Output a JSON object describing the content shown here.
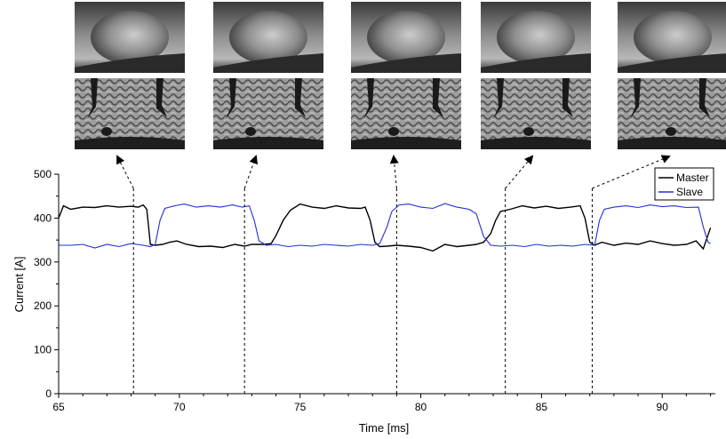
{
  "chart_data": {
    "type": "line",
    "title": "",
    "xlabel": "Time [ms]",
    "ylabel": "Current [A]",
    "xlim": [
      65,
      92.2
    ],
    "ylim": [
      0,
      500
    ],
    "xticks": [
      65,
      70,
      75,
      80,
      85,
      90
    ],
    "yticks": [
      0,
      100,
      200,
      300,
      400,
      500
    ],
    "grid": false,
    "legend_position": "top-right",
    "series": [
      {
        "name": "Master",
        "color": "#000000",
        "points": [
          [
            65.0,
            400
          ],
          [
            65.2,
            428
          ],
          [
            65.5,
            420
          ],
          [
            66.0,
            425
          ],
          [
            66.5,
            424
          ],
          [
            67.0,
            428
          ],
          [
            67.5,
            425
          ],
          [
            68.0,
            427
          ],
          [
            68.3,
            425
          ],
          [
            68.5,
            430
          ],
          [
            68.65,
            420
          ],
          [
            68.8,
            340
          ],
          [
            69.0,
            338
          ],
          [
            69.3,
            340
          ],
          [
            69.6,
            345
          ],
          [
            69.9,
            348
          ],
          [
            70.3,
            340
          ],
          [
            70.8,
            335
          ],
          [
            71.3,
            336
          ],
          [
            71.8,
            333
          ],
          [
            72.3,
            340
          ],
          [
            72.7,
            336
          ],
          [
            73.0,
            340
          ],
          [
            73.5,
            340
          ],
          [
            73.8,
            342
          ],
          [
            74.0,
            360
          ],
          [
            74.3,
            395
          ],
          [
            74.6,
            418
          ],
          [
            75.0,
            432
          ],
          [
            75.5,
            425
          ],
          [
            76.0,
            422
          ],
          [
            76.5,
            428
          ],
          [
            77.0,
            423
          ],
          [
            77.5,
            422
          ],
          [
            77.7,
            425
          ],
          [
            77.9,
            395
          ],
          [
            78.1,
            345
          ],
          [
            78.3,
            335
          ],
          [
            78.6,
            336
          ],
          [
            79.0,
            338
          ],
          [
            79.5,
            336
          ],
          [
            80.0,
            333
          ],
          [
            80.5,
            325
          ],
          [
            81.0,
            340
          ],
          [
            81.5,
            335
          ],
          [
            82.0,
            338
          ],
          [
            82.3,
            340
          ],
          [
            82.6,
            345
          ],
          [
            82.9,
            365
          ],
          [
            83.1,
            395
          ],
          [
            83.3,
            415
          ],
          [
            83.7,
            420
          ],
          [
            84.2,
            428
          ],
          [
            84.7,
            423
          ],
          [
            85.2,
            427
          ],
          [
            85.7,
            422
          ],
          [
            86.2,
            425
          ],
          [
            86.6,
            428
          ],
          [
            86.8,
            400
          ],
          [
            87.0,
            345
          ],
          [
            87.2,
            338
          ],
          [
            87.5,
            345
          ],
          [
            88.0,
            338
          ],
          [
            88.5,
            343
          ],
          [
            89.0,
            340
          ],
          [
            89.5,
            348
          ],
          [
            90.0,
            342
          ],
          [
            90.5,
            338
          ],
          [
            91.0,
            340
          ],
          [
            91.4,
            348
          ],
          [
            91.7,
            330
          ],
          [
            92.0,
            378
          ]
        ]
      },
      {
        "name": "Slave",
        "color": "#1f2fd6",
        "points": [
          [
            65.0,
            338
          ],
          [
            65.5,
            338
          ],
          [
            66.0,
            340
          ],
          [
            66.5,
            332
          ],
          [
            67.0,
            340
          ],
          [
            67.5,
            335
          ],
          [
            68.0,
            342
          ],
          [
            68.5,
            338
          ],
          [
            68.8,
            335
          ],
          [
            69.0,
            340
          ],
          [
            69.2,
            395
          ],
          [
            69.4,
            422
          ],
          [
            69.8,
            428
          ],
          [
            70.2,
            432
          ],
          [
            70.7,
            425
          ],
          [
            71.2,
            428
          ],
          [
            71.7,
            425
          ],
          [
            72.2,
            430
          ],
          [
            72.6,
            425
          ],
          [
            72.9,
            428
          ],
          [
            73.1,
            395
          ],
          [
            73.3,
            348
          ],
          [
            73.6,
            338
          ],
          [
            74.0,
            340
          ],
          [
            74.5,
            335
          ],
          [
            75.0,
            338
          ],
          [
            75.5,
            336
          ],
          [
            76.0,
            340
          ],
          [
            76.5,
            338
          ],
          [
            77.0,
            336
          ],
          [
            77.5,
            340
          ],
          [
            78.0,
            338
          ],
          [
            78.3,
            342
          ],
          [
            78.6,
            380
          ],
          [
            78.8,
            415
          ],
          [
            79.1,
            430
          ],
          [
            79.5,
            432
          ],
          [
            80.0,
            425
          ],
          [
            80.5,
            422
          ],
          [
            81.0,
            433
          ],
          [
            81.5,
            425
          ],
          [
            82.0,
            420
          ],
          [
            82.3,
            410
          ],
          [
            82.6,
            358
          ],
          [
            82.9,
            338
          ],
          [
            83.3,
            336
          ],
          [
            83.8,
            338
          ],
          [
            84.3,
            335
          ],
          [
            84.8,
            340
          ],
          [
            85.3,
            336
          ],
          [
            85.8,
            338
          ],
          [
            86.3,
            336
          ],
          [
            86.8,
            340
          ],
          [
            87.2,
            338
          ],
          [
            87.4,
            395
          ],
          [
            87.6,
            420
          ],
          [
            88.0,
            425
          ],
          [
            88.5,
            428
          ],
          [
            89.0,
            424
          ],
          [
            89.5,
            430
          ],
          [
            90.0,
            426
          ],
          [
            90.5,
            428
          ],
          [
            91.0,
            424
          ],
          [
            91.5,
            425
          ],
          [
            91.7,
            380
          ],
          [
            91.9,
            345
          ],
          [
            92.0,
            342
          ]
        ]
      }
    ],
    "annotations": {
      "marker_times": [
        68.1,
        72.7,
        79.0,
        83.5,
        87.1
      ],
      "image_pairs": 5
    }
  }
}
